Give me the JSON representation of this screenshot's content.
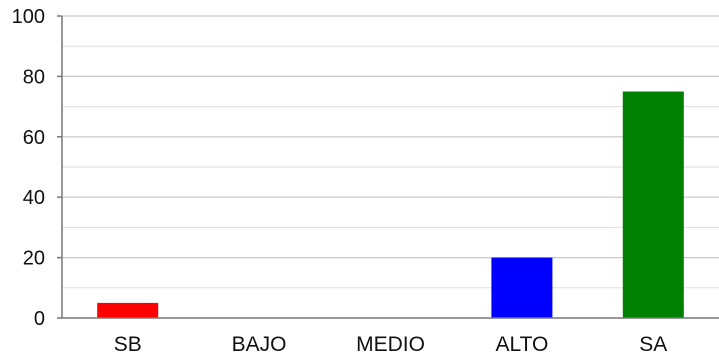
{
  "chart_data": {
    "type": "bar",
    "categories": [
      "SB",
      "BAJO",
      "MEDIO",
      "ALTO",
      "SA"
    ],
    "values": [
      5,
      0,
      0,
      20,
      75
    ],
    "colors": [
      "#ff0000",
      "#ff0000",
      "#ffff00",
      "#0000ff",
      "#008000"
    ],
    "title": "",
    "xlabel": "",
    "ylabel": "",
    "ylim": [
      0,
      100
    ],
    "yticks": [
      0,
      20,
      40,
      60,
      80,
      100
    ],
    "ytick_labels": [
      "0",
      "20",
      "40",
      "60",
      "80",
      "100"
    ],
    "minor_gridlines": true,
    "grid": true,
    "legend": "none"
  }
}
